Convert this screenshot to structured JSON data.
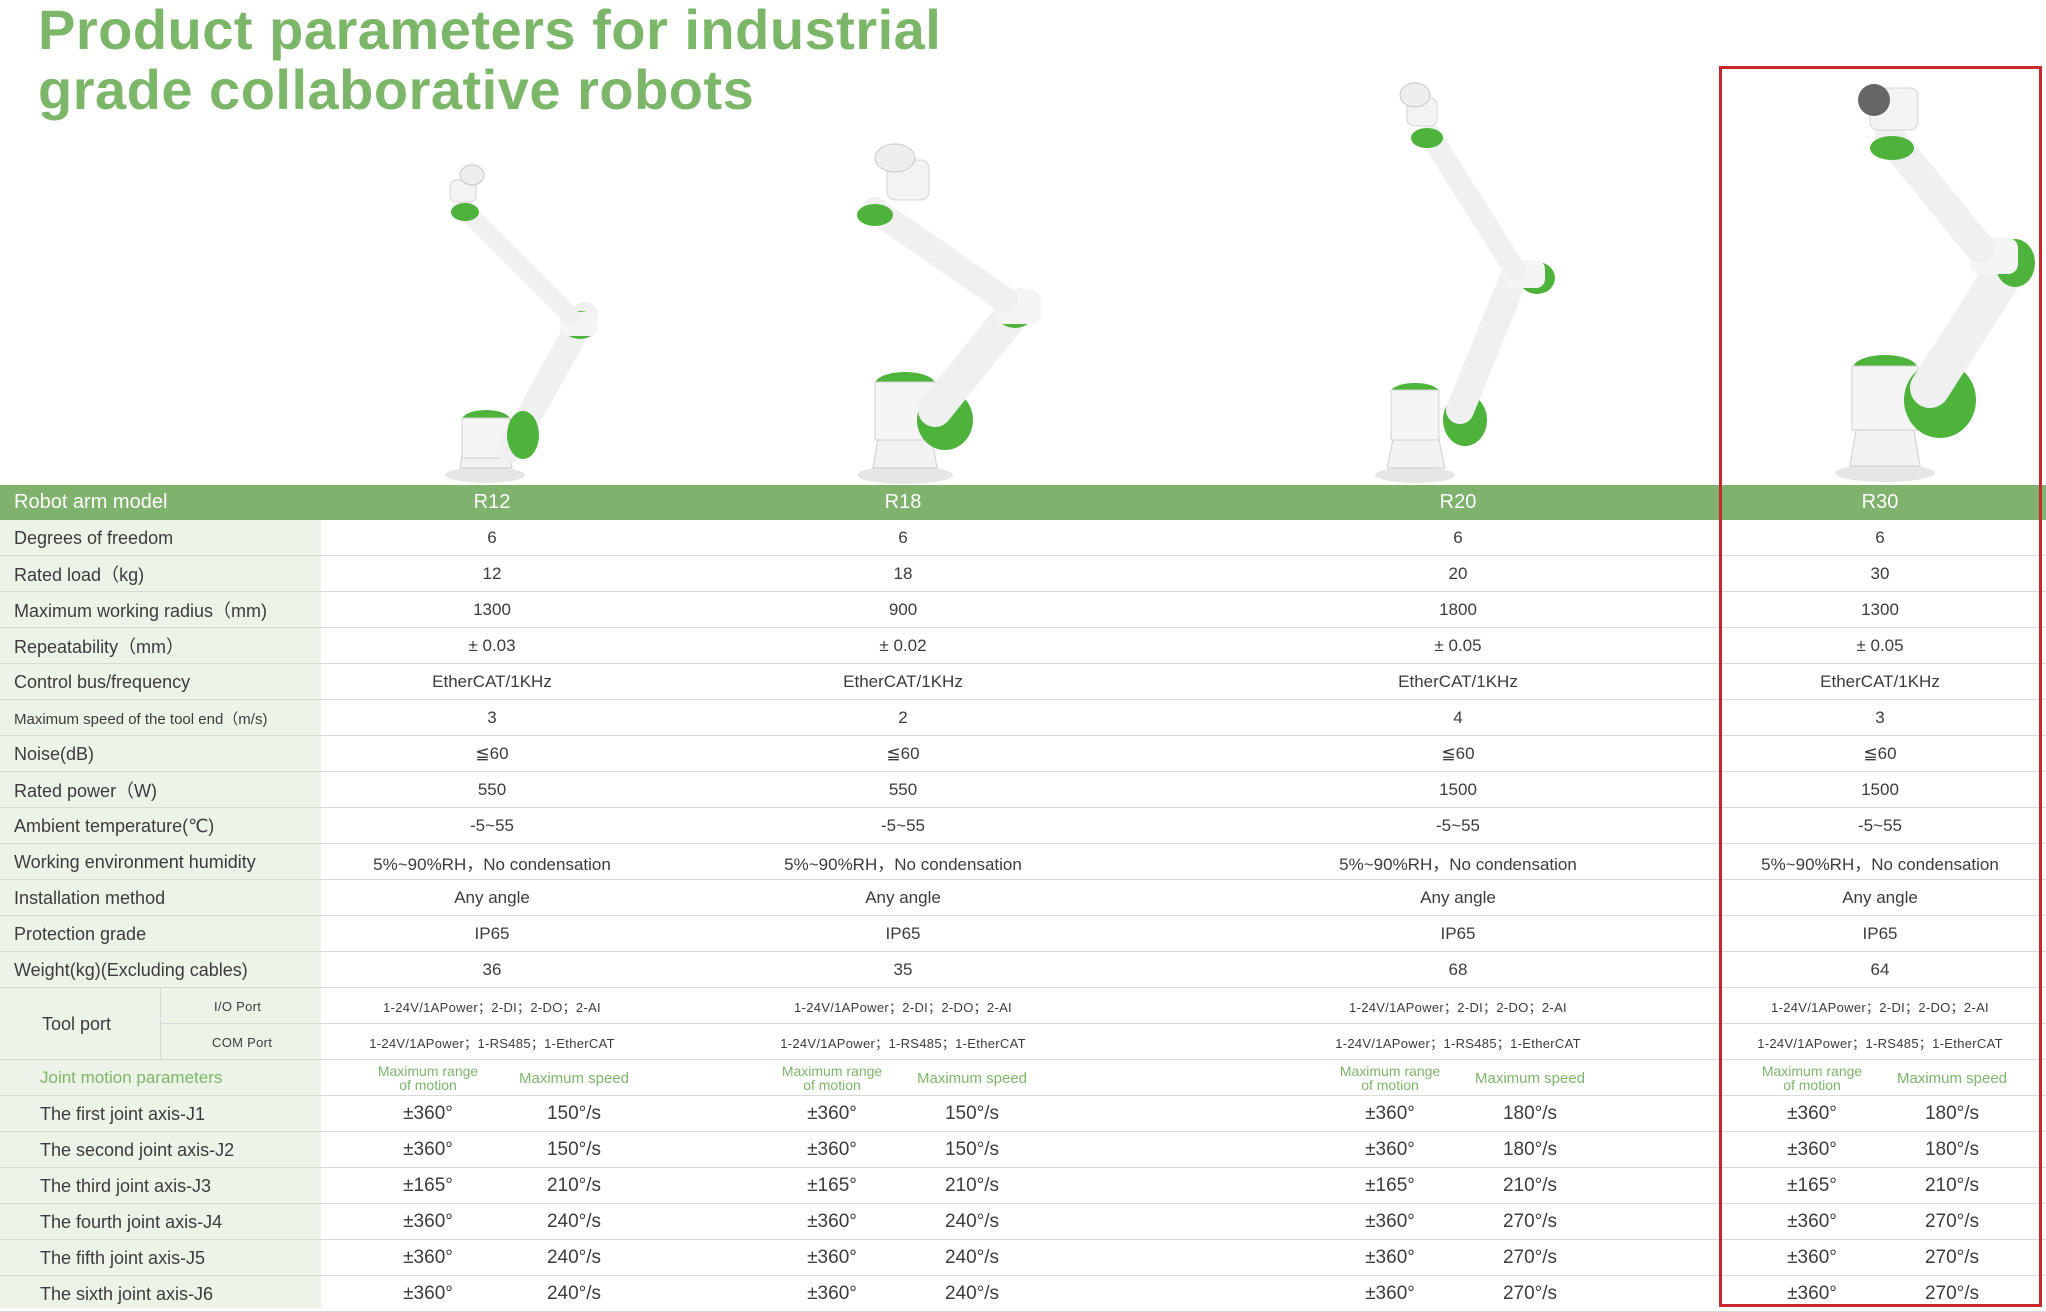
{
  "title": {
    "line1": "Product parameters for industrial",
    "line2": "grade collaborative robots"
  },
  "colors": {
    "brand_green": "#7cb668",
    "header_band": "#7fb26c",
    "label_column": "#ecf3e7",
    "highlight_frame": "#c8282c"
  },
  "highlighted_model": "R30",
  "table": {
    "model_header": "Robot arm model",
    "models": [
      "R12",
      "R18",
      "R20",
      "R30"
    ],
    "rows": [
      {
        "label": "Degrees of freedom",
        "values": [
          "6",
          "6",
          "6",
          "6"
        ]
      },
      {
        "label": "Rated load（kg)",
        "values": [
          "12",
          "18",
          "20",
          "30"
        ]
      },
      {
        "label": "Maximum working radius（mm)",
        "values": [
          "1300",
          "900",
          "1800",
          "1300"
        ]
      },
      {
        "label": "Repeatability（mm）",
        "values": [
          "± 0.03",
          "± 0.02",
          "± 0.05",
          "± 0.05"
        ]
      },
      {
        "label": "Control bus/frequency",
        "values": [
          "EtherCAT/1KHz",
          "EtherCAT/1KHz",
          "EtherCAT/1KHz",
          "EtherCAT/1KHz"
        ]
      },
      {
        "label": "Maximum speed of the tool end（m/s)",
        "values": [
          "3",
          "2",
          "4",
          "3"
        ]
      },
      {
        "label": "Noise(dB)",
        "values": [
          "≦60",
          "≦60",
          "≦60",
          "≦60"
        ]
      },
      {
        "label": "Rated power（W)",
        "values": [
          "550",
          "550",
          "1500",
          "1500"
        ]
      },
      {
        "label": "Ambient temperature(℃)",
        "values": [
          "-5~55",
          "-5~55",
          "-5~55",
          "-5~55"
        ]
      },
      {
        "label": "Working environment humidity",
        "values": [
          "5%~90%RH，No condensation",
          "5%~90%RH，No condensation",
          "5%~90%RH，No condensation",
          "5%~90%RH，No condensation"
        ]
      },
      {
        "label": "Installation method",
        "values": [
          "Any angle",
          "Any angle",
          "Any angle",
          "Any angle"
        ]
      },
      {
        "label": "Protection grade",
        "values": [
          "IP65",
          "IP65",
          "IP65",
          "IP65"
        ]
      },
      {
        "label": "Weight(kg)(Excluding cables)",
        "values": [
          "36",
          "35",
          "68",
          "64"
        ]
      }
    ],
    "tool_port": {
      "label": "Tool port",
      "io_label": "I/O Port",
      "io_values": [
        "1-24V/1APower；2-DI；2-DO；2-AI",
        "1-24V/1APower；2-DI；2-DO；2-AI",
        "1-24V/1APower；2-DI；2-DO；2-AI",
        "1-24V/1APower；2-DI；2-DO；2-AI"
      ],
      "com_label": "COM Port",
      "com_values": [
        "1-24V/1APower；1-RS485；1-EtherCAT",
        "1-24V/1APower；1-RS485；1-EtherCAT",
        "1-24V/1APower；1-RS485；1-EtherCAT",
        "1-24V/1APower；1-RS485；1-EtherCAT"
      ]
    },
    "joint_header": {
      "label": "Joint motion parameters",
      "range_line1": "Maximum range",
      "range_line2": "of motion",
      "speed": "Maximum speed"
    },
    "joints": [
      {
        "label": "The first joint axis-J1",
        "range": [
          "±360°",
          "±360°",
          "±360°",
          "±360°"
        ],
        "speed": [
          "150°/s",
          "150°/s",
          "180°/s",
          "180°/s"
        ]
      },
      {
        "label": "The second joint axis-J2",
        "range": [
          "±360°",
          "±360°",
          "±360°",
          "±360°"
        ],
        "speed": [
          "150°/s",
          "150°/s",
          "180°/s",
          "180°/s"
        ]
      },
      {
        "label": "The third joint axis-J3",
        "range": [
          "±165°",
          "±165°",
          "±165°",
          "±165°"
        ],
        "speed": [
          "210°/s",
          "210°/s",
          "210°/s",
          "210°/s"
        ]
      },
      {
        "label": "The fourth joint axis-J4",
        "range": [
          "±360°",
          "±360°",
          "±360°",
          "±360°"
        ],
        "speed": [
          "240°/s",
          "240°/s",
          "270°/s",
          "270°/s"
        ]
      },
      {
        "label": "The fifth joint axis-J5",
        "range": [
          "±360°",
          "±360°",
          "±360°",
          "±360°"
        ],
        "speed": [
          "240°/s",
          "240°/s",
          "270°/s",
          "270°/s"
        ]
      },
      {
        "label": "The sixth joint axis-J6",
        "range": [
          "±360°",
          "±360°",
          "±360°",
          "±360°"
        ],
        "speed": [
          "240°/s",
          "240°/s",
          "270°/s",
          "270°/s"
        ]
      }
    ]
  }
}
